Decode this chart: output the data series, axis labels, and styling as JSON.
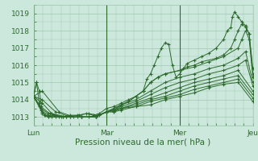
{
  "xlabel": "Pression niveau de la mer( hPa )",
  "bg_color": "#cce8dc",
  "grid_color": "#a0c8b0",
  "line_color": "#2d6a2d",
  "marker_color": "#2d6a2d",
  "ylim": [
    1012.5,
    1019.5
  ],
  "xlim": [
    0,
    3.0
  ],
  "day_ticks": [
    0,
    1,
    2,
    3
  ],
  "day_labels": [
    "Lun",
    "Mar",
    "Mer",
    "Jeu"
  ],
  "major_yticks": [
    1013,
    1014,
    1015,
    1016,
    1017,
    1018,
    1019
  ],
  "series": [
    [
      0.0,
      1014.2,
      0.04,
      1015.0,
      0.08,
      1014.5,
      0.12,
      1013.3,
      0.16,
      1013.1,
      0.2,
      1013.0,
      0.28,
      1013.1,
      0.38,
      1013.0,
      0.5,
      1013.1,
      0.62,
      1013.1,
      0.72,
      1013.2,
      0.82,
      1013.1,
      0.9,
      1013.2,
      1.0,
      1013.5,
      1.1,
      1013.6,
      1.2,
      1013.8,
      1.3,
      1014.0,
      1.4,
      1014.2,
      1.5,
      1014.5,
      1.55,
      1015.2,
      1.6,
      1015.5,
      1.65,
      1016.0,
      1.7,
      1016.5,
      1.75,
      1017.0,
      1.8,
      1017.3,
      1.85,
      1017.2,
      1.9,
      1016.0,
      1.95,
      1015.3,
      2.0,
      1015.5,
      2.05,
      1015.8,
      2.1,
      1016.1,
      2.2,
      1016.3,
      2.3,
      1016.5,
      2.4,
      1016.7,
      2.5,
      1017.0,
      2.6,
      1017.5,
      2.65,
      1018.0,
      2.7,
      1018.2,
      2.72,
      1018.8,
      2.75,
      1019.1,
      2.8,
      1018.8,
      2.85,
      1018.5,
      2.9,
      1018.3,
      2.95,
      1017.8,
      3.0,
      1015.8
    ],
    [
      0.0,
      1014.2,
      0.04,
      1015.0,
      0.08,
      1013.8,
      0.12,
      1013.2,
      0.2,
      1013.0,
      0.3,
      1013.0,
      0.45,
      1013.0,
      0.6,
      1013.1,
      0.75,
      1013.2,
      0.88,
      1013.1,
      1.0,
      1013.3,
      1.1,
      1013.4,
      1.2,
      1013.7,
      1.3,
      1013.9,
      1.4,
      1014.2,
      1.5,
      1014.5,
      1.6,
      1015.0,
      1.7,
      1015.3,
      1.8,
      1015.5,
      2.0,
      1015.7,
      2.1,
      1015.9,
      2.2,
      1016.0,
      2.3,
      1016.2,
      2.5,
      1016.4,
      2.6,
      1016.6,
      2.7,
      1017.0,
      2.75,
      1017.5,
      2.8,
      1018.0,
      2.85,
      1018.4,
      2.9,
      1018.2,
      2.95,
      1017.8,
      3.0,
      1015.5
    ],
    [
      0.0,
      1014.2,
      0.08,
      1013.6,
      0.15,
      1013.1,
      0.25,
      1013.0,
      0.5,
      1013.0,
      0.75,
      1013.0,
      0.9,
      1013.1,
      1.0,
      1013.3,
      1.1,
      1013.5,
      1.2,
      1013.7,
      1.3,
      1013.9,
      1.4,
      1014.2,
      1.5,
      1014.5,
      1.6,
      1015.0,
      1.7,
      1015.3,
      1.8,
      1015.5,
      2.0,
      1015.7,
      2.2,
      1015.9,
      2.4,
      1016.2,
      2.6,
      1016.5,
      2.8,
      1017.0,
      2.85,
      1017.5,
      2.9,
      1018.0,
      2.95,
      1017.5,
      3.0,
      1015.3
    ],
    [
      0.0,
      1014.2,
      0.1,
      1013.4,
      0.2,
      1013.1,
      0.35,
      1013.0,
      0.6,
      1013.0,
      0.85,
      1013.0,
      1.0,
      1013.3,
      1.1,
      1013.5,
      1.2,
      1013.7,
      1.4,
      1014.0,
      1.6,
      1014.5,
      1.8,
      1015.0,
      2.0,
      1015.3,
      2.2,
      1015.5,
      2.4,
      1015.8,
      2.6,
      1016.0,
      2.8,
      1016.4,
      2.9,
      1016.8,
      3.0,
      1015.0
    ],
    [
      0.0,
      1014.2,
      0.1,
      1013.5,
      0.2,
      1013.2,
      0.4,
      1013.0,
      0.65,
      1013.0,
      0.85,
      1013.0,
      1.0,
      1013.3,
      1.1,
      1013.4,
      1.2,
      1013.6,
      1.4,
      1013.9,
      1.6,
      1014.3,
      1.8,
      1014.7,
      2.0,
      1015.0,
      2.2,
      1015.2,
      2.4,
      1015.5,
      2.6,
      1015.7,
      2.8,
      1016.0,
      2.9,
      1016.3,
      3.0,
      1014.8
    ],
    [
      0.0,
      1014.2,
      0.1,
      1013.6,
      0.22,
      1013.2,
      0.4,
      1013.0,
      0.65,
      1013.0,
      0.85,
      1013.0,
      1.0,
      1013.3,
      1.1,
      1013.4,
      1.2,
      1013.5,
      1.4,
      1013.8,
      1.6,
      1014.1,
      1.8,
      1014.4,
      2.0,
      1014.7,
      2.2,
      1015.0,
      2.4,
      1015.2,
      2.6,
      1015.4,
      2.8,
      1015.7,
      3.0,
      1014.5
    ],
    [
      0.0,
      1014.2,
      0.12,
      1013.8,
      0.25,
      1013.2,
      0.45,
      1013.0,
      0.65,
      1013.0,
      0.85,
      1013.0,
      1.0,
      1013.3,
      1.1,
      1013.4,
      1.2,
      1013.5,
      1.4,
      1013.7,
      1.6,
      1014.0,
      1.8,
      1014.2,
      2.0,
      1014.5,
      2.2,
      1014.8,
      2.4,
      1015.0,
      2.6,
      1015.2,
      2.8,
      1015.4,
      3.0,
      1014.3
    ],
    [
      0.0,
      1014.2,
      0.12,
      1014.0,
      0.3,
      1013.3,
      0.5,
      1013.0,
      0.65,
      1013.0,
      0.85,
      1013.0,
      1.0,
      1013.3,
      1.1,
      1013.3,
      1.2,
      1013.5,
      1.4,
      1013.6,
      1.6,
      1013.9,
      1.8,
      1014.1,
      2.0,
      1014.3,
      2.2,
      1014.6,
      2.4,
      1014.8,
      2.6,
      1015.0,
      2.8,
      1015.2,
      3.0,
      1014.1
    ],
    [
      0.0,
      1014.2,
      0.12,
      1014.5,
      0.35,
      1013.3,
      0.55,
      1013.0,
      0.65,
      1013.0,
      0.85,
      1013.0,
      1.0,
      1013.3,
      1.1,
      1013.3,
      1.2,
      1013.4,
      1.4,
      1013.6,
      1.6,
      1013.7,
      1.8,
      1014.0,
      2.0,
      1014.2,
      2.2,
      1014.4,
      2.4,
      1014.7,
      2.6,
      1014.9,
      2.8,
      1015.0,
      3.0,
      1013.9
    ]
  ]
}
